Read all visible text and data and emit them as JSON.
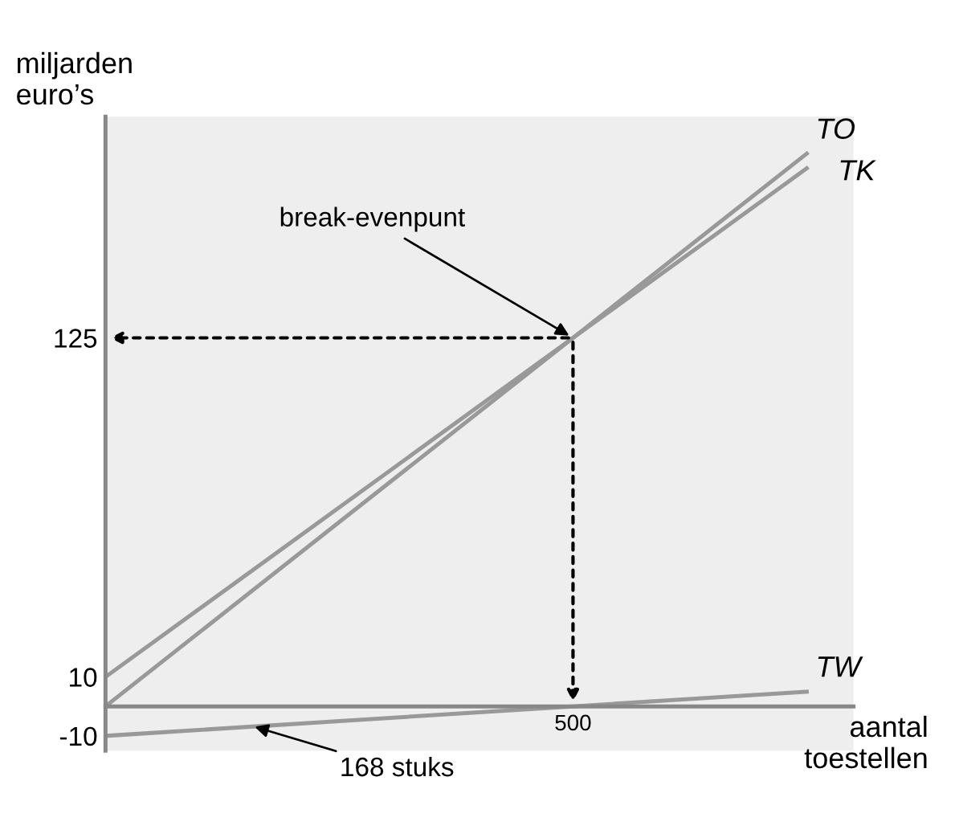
{
  "chart_data": {
    "type": "line",
    "xlabel": "aantal\ntoestellen",
    "ylabel": "miljarden\neuro’s",
    "categories": [
      null,
      null,
      "500",
      null
    ],
    "series": [
      {
        "name": "TO",
        "color": "#999999",
        "values": [
          0,
          62.5,
          125,
          187.5
        ]
      },
      {
        "name": "TK",
        "color": "#999999",
        "values": [
          10,
          67.5,
          125,
          182.5
        ]
      },
      {
        "name": "TW",
        "color": "#999999",
        "values": [
          -10,
          -5,
          0,
          5
        ]
      }
    ],
    "ylim": [
      -15,
      200
    ],
    "yticks": [
      -10,
      10,
      125
    ],
    "annotations": [
      {
        "text": "break-evenpunt",
        "x": "500",
        "y": 125
      },
      "168 stuks"
    ],
    "grid": false,
    "legend": false,
    "marker": "none",
    "line_style": "solid"
  }
}
